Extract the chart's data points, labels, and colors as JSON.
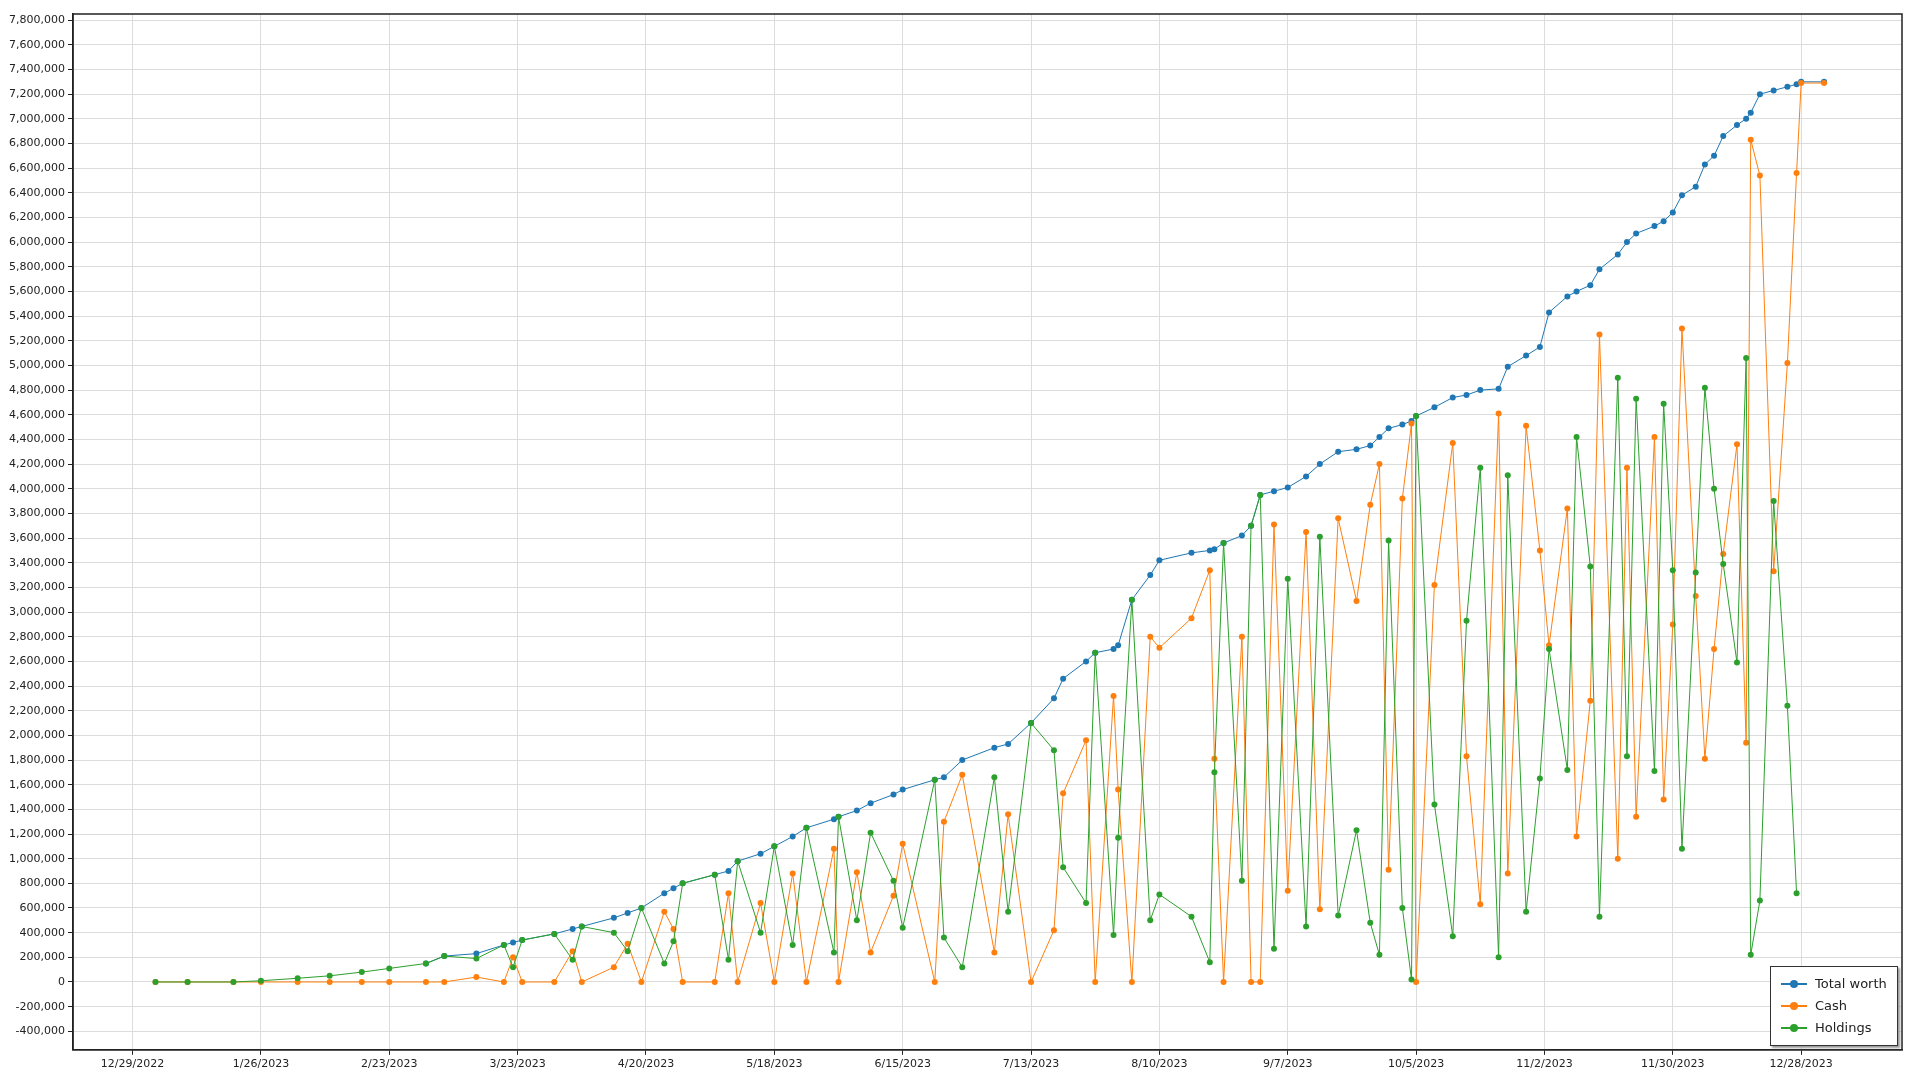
{
  "chart_data": {
    "type": "line",
    "x": [
      "2023-01-03",
      "2023-01-10",
      "2023-01-20",
      "2023-01-26",
      "2023-02-03",
      "2023-02-10",
      "2023-02-17",
      "2023-02-23",
      "2023-03-03",
      "2023-03-07",
      "2023-03-14",
      "2023-03-20",
      "2023-03-22",
      "2023-03-24",
      "2023-03-31",
      "2023-04-04",
      "2023-04-06",
      "2023-04-13",
      "2023-04-16",
      "2023-04-19",
      "2023-04-24",
      "2023-04-26",
      "2023-04-28",
      "2023-05-05",
      "2023-05-08",
      "2023-05-10",
      "2023-05-15",
      "2023-05-18",
      "2023-05-22",
      "2023-05-25",
      "2023-05-31",
      "2023-06-01",
      "2023-06-05",
      "2023-06-08",
      "2023-06-13",
      "2023-06-15",
      "2023-06-22",
      "2023-06-24",
      "2023-06-28",
      "2023-07-05",
      "2023-07-08",
      "2023-07-13",
      "2023-07-18",
      "2023-07-20",
      "2023-07-25",
      "2023-07-27",
      "2023-07-31",
      "2023-08-01",
      "2023-08-04",
      "2023-08-08",
      "2023-08-10",
      "2023-08-17",
      "2023-08-21",
      "2023-08-22",
      "2023-08-24",
      "2023-08-28",
      "2023-08-30",
      "2023-09-01",
      "2023-09-04",
      "2023-09-07",
      "2023-09-11",
      "2023-09-14",
      "2023-09-18",
      "2023-09-22",
      "2023-09-25",
      "2023-09-27",
      "2023-09-29",
      "2023-10-02",
      "2023-10-04",
      "2023-10-05",
      "2023-10-09",
      "2023-10-13",
      "2023-10-16",
      "2023-10-19",
      "2023-10-23",
      "2023-10-25",
      "2023-10-29",
      "2023-11-01",
      "2023-11-03",
      "2023-11-07",
      "2023-11-09",
      "2023-11-12",
      "2023-11-14",
      "2023-11-18",
      "2023-11-20",
      "2023-11-22",
      "2023-11-26",
      "2023-11-28",
      "2023-11-30",
      "2023-12-02",
      "2023-12-05",
      "2023-12-07",
      "2023-12-09",
      "2023-12-11",
      "2023-12-14",
      "2023-12-16",
      "2023-12-17",
      "2023-12-19",
      "2023-12-22",
      "2023-12-25",
      "2023-12-27",
      "2023-12-28",
      "2024-01-02"
    ],
    "series": [
      {
        "name": "Total worth",
        "color": "#1f77b4",
        "values": [
          null,
          null,
          null,
          null,
          null,
          null,
          null,
          null,
          150000,
          210000,
          230000,
          300000,
          320000,
          340000,
          390000,
          430000,
          450000,
          520000,
          560000,
          600000,
          720000,
          760000,
          800000,
          870000,
          900000,
          980000,
          1040000,
          1100000,
          1180000,
          1250000,
          1320000,
          1340000,
          1390000,
          1450000,
          1520000,
          1560000,
          1640000,
          1660000,
          1800000,
          1900000,
          1930000,
          2100000,
          2300000,
          2460000,
          2600000,
          2670000,
          2700000,
          2730000,
          3100000,
          3300000,
          3420000,
          3480000,
          3500000,
          3510000,
          3560000,
          3620000,
          3700000,
          3950000,
          3980000,
          4010000,
          4100000,
          4200000,
          4300000,
          4320000,
          4350000,
          4420000,
          4490000,
          4520000,
          4550000,
          4590000,
          4660000,
          4740000,
          4760000,
          4800000,
          4810000,
          4990000,
          5080000,
          5150000,
          5430000,
          5560000,
          5600000,
          5650000,
          5780000,
          5900000,
          6000000,
          6070000,
          6130000,
          6170000,
          6240000,
          6380000,
          6450000,
          6630000,
          6700000,
          6860000,
          6950000,
          7000000,
          7050000,
          7200000,
          7230000,
          7260000,
          7280000,
          7300000,
          7300000
        ]
      },
      {
        "name": "Cash",
        "color": "#ff7f0e",
        "values": [
          0,
          0,
          0,
          0,
          0,
          0,
          0,
          0,
          0,
          0,
          40000,
          0,
          200000,
          0,
          0,
          250000,
          0,
          120000,
          310000,
          0,
          570000,
          430000,
          0,
          0,
          720000,
          0,
          640000,
          0,
          880000,
          0,
          1080000,
          0,
          890000,
          240000,
          700000,
          1120000,
          0,
          1300000,
          1680000,
          240000,
          1360000,
          0,
          420000,
          1530000,
          1960000,
          0,
          2320000,
          1560000,
          0,
          2800000,
          2710000,
          2950000,
          3340000,
          1810000,
          0,
          2800000,
          0,
          0,
          3710000,
          740000,
          3650000,
          590000,
          3760000,
          3090000,
          3870000,
          4200000,
          910000,
          3920000,
          4530000,
          0,
          3220000,
          4370000,
          1830000,
          630000,
          4610000,
          880000,
          4510000,
          3500000,
          2730000,
          3840000,
          1180000,
          2280000,
          5250000,
          1000000,
          4170000,
          1340000,
          4420000,
          1480000,
          2900000,
          5300000,
          3130000,
          1810000,
          2700000,
          3470000,
          4360000,
          1940000,
          6830000,
          6540000,
          3330000,
          5020000,
          6560000,
          7290000,
          7290000
        ]
      },
      {
        "name": "Holdings",
        "color": "#2ca02c",
        "values": [
          0,
          0,
          0,
          10000,
          30000,
          50000,
          80000,
          110000,
          150000,
          210000,
          190000,
          300000,
          120000,
          340000,
          390000,
          180000,
          450000,
          400000,
          250000,
          600000,
          150000,
          330000,
          800000,
          870000,
          180000,
          980000,
          400000,
          1100000,
          300000,
          1250000,
          240000,
          1340000,
          500000,
          1210000,
          820000,
          440000,
          1640000,
          360000,
          120000,
          1660000,
          570000,
          2100000,
          1880000,
          930000,
          640000,
          2670000,
          380000,
          1170000,
          3100000,
          500000,
          710000,
          530000,
          160000,
          1700000,
          3560000,
          820000,
          3700000,
          3950000,
          270000,
          3270000,
          450000,
          3610000,
          540000,
          1230000,
          480000,
          220000,
          3580000,
          600000,
          20000,
          4590000,
          1440000,
          370000,
          2930000,
          4170000,
          200000,
          4110000,
          570000,
          1650000,
          2700000,
          1720000,
          4420000,
          3370000,
          530000,
          4900000,
          1830000,
          4730000,
          1710000,
          4690000,
          3340000,
          1080000,
          3320000,
          4820000,
          4000000,
          3390000,
          2590000,
          5060000,
          220000,
          660000,
          3900000,
          2240000,
          720000,
          null,
          null
        ]
      }
    ],
    "xlim": [
      "2022-12-16",
      "2024-01-19"
    ],
    "xticks": [
      {
        "value": "2022-12-29",
        "label": "12/29/2022"
      },
      {
        "value": "2023-01-26",
        "label": "1/26/2023"
      },
      {
        "value": "2023-02-23",
        "label": "2/23/2023"
      },
      {
        "value": "2023-03-23",
        "label": "3/23/2023"
      },
      {
        "value": "2023-04-20",
        "label": "4/20/2023"
      },
      {
        "value": "2023-05-18",
        "label": "5/18/2023"
      },
      {
        "value": "2023-06-15",
        "label": "6/15/2023"
      },
      {
        "value": "2023-07-13",
        "label": "7/13/2023"
      },
      {
        "value": "2023-08-10",
        "label": "8/10/2023"
      },
      {
        "value": "2023-09-07",
        "label": "9/7/2023"
      },
      {
        "value": "2023-10-05",
        "label": "10/5/2023"
      },
      {
        "value": "2023-11-02",
        "label": "11/2/2023"
      },
      {
        "value": "2023-11-30",
        "label": "11/30/2023"
      },
      {
        "value": "2023-12-28",
        "label": "12/28/2023"
      }
    ],
    "ylim": [
      -550000,
      7850000
    ],
    "yticks": [
      {
        "value": -400000,
        "label": "-400,000"
      },
      {
        "value": -200000,
        "label": "-200,000"
      },
      0,
      {
        "value": 200000,
        "label": "200,000"
      },
      {
        "value": 400000,
        "label": "400,000"
      },
      {
        "value": 600000,
        "label": "600,000"
      },
      {
        "value": 800000,
        "label": "800,000"
      },
      {
        "value": 1000000,
        "label": "1,000,000"
      },
      {
        "value": 1200000,
        "label": "1,200,000"
      },
      {
        "value": 1400000,
        "label": "1,400,000"
      },
      {
        "value": 1600000,
        "label": "1,600,000"
      },
      {
        "value": 1800000,
        "label": "1,800,000"
      },
      {
        "value": 2000000,
        "label": "2,000,000"
      },
      {
        "value": 2200000,
        "label": "2,200,000"
      },
      {
        "value": 2400000,
        "label": "2,400,000"
      },
      {
        "value": 2600000,
        "label": "2,600,000"
      },
      {
        "value": 2800000,
        "label": "2,800,000"
      },
      {
        "value": 3000000,
        "label": "3,000,000"
      },
      {
        "value": 3200000,
        "label": "3,200,000"
      },
      {
        "value": 3400000,
        "label": "3,400,000"
      },
      {
        "value": 3600000,
        "label": "3,600,000"
      },
      {
        "value": 3800000,
        "label": "3,800,000"
      },
      {
        "value": 4000000,
        "label": "4,000,000"
      },
      {
        "value": 4200000,
        "label": "4,200,000"
      },
      {
        "value": 4400000,
        "label": "4,400,000"
      },
      {
        "value": 4600000,
        "label": "4,600,000"
      },
      {
        "value": 4800000,
        "label": "4,800,000"
      },
      {
        "value": 5000000,
        "label": "5,000,000"
      },
      {
        "value": 5200000,
        "label": "5,200,000"
      },
      {
        "value": 5400000,
        "label": "5,400,000"
      },
      {
        "value": 5600000,
        "label": "5,600,000"
      },
      {
        "value": 5800000,
        "label": "5,800,000"
      },
      {
        "value": 6000000,
        "label": "6,000,000"
      },
      {
        "value": 6200000,
        "label": "6,200,000"
      },
      {
        "value": 6400000,
        "label": "6,400,000"
      },
      {
        "value": 6600000,
        "label": "6,600,000"
      },
      {
        "value": 6800000,
        "label": "6,800,000"
      },
      {
        "value": 7000000,
        "label": "7,000,000"
      },
      {
        "value": 7200000,
        "label": "7,200,000"
      },
      {
        "value": 7400000,
        "label": "7,400,000"
      },
      {
        "value": 7600000,
        "label": "7,600,000"
      },
      {
        "value": 7800000,
        "label": "7,800,000"
      }
    ],
    "grid": true,
    "legend": "bottom right",
    "marker": "circle",
    "line_style": "solid"
  }
}
